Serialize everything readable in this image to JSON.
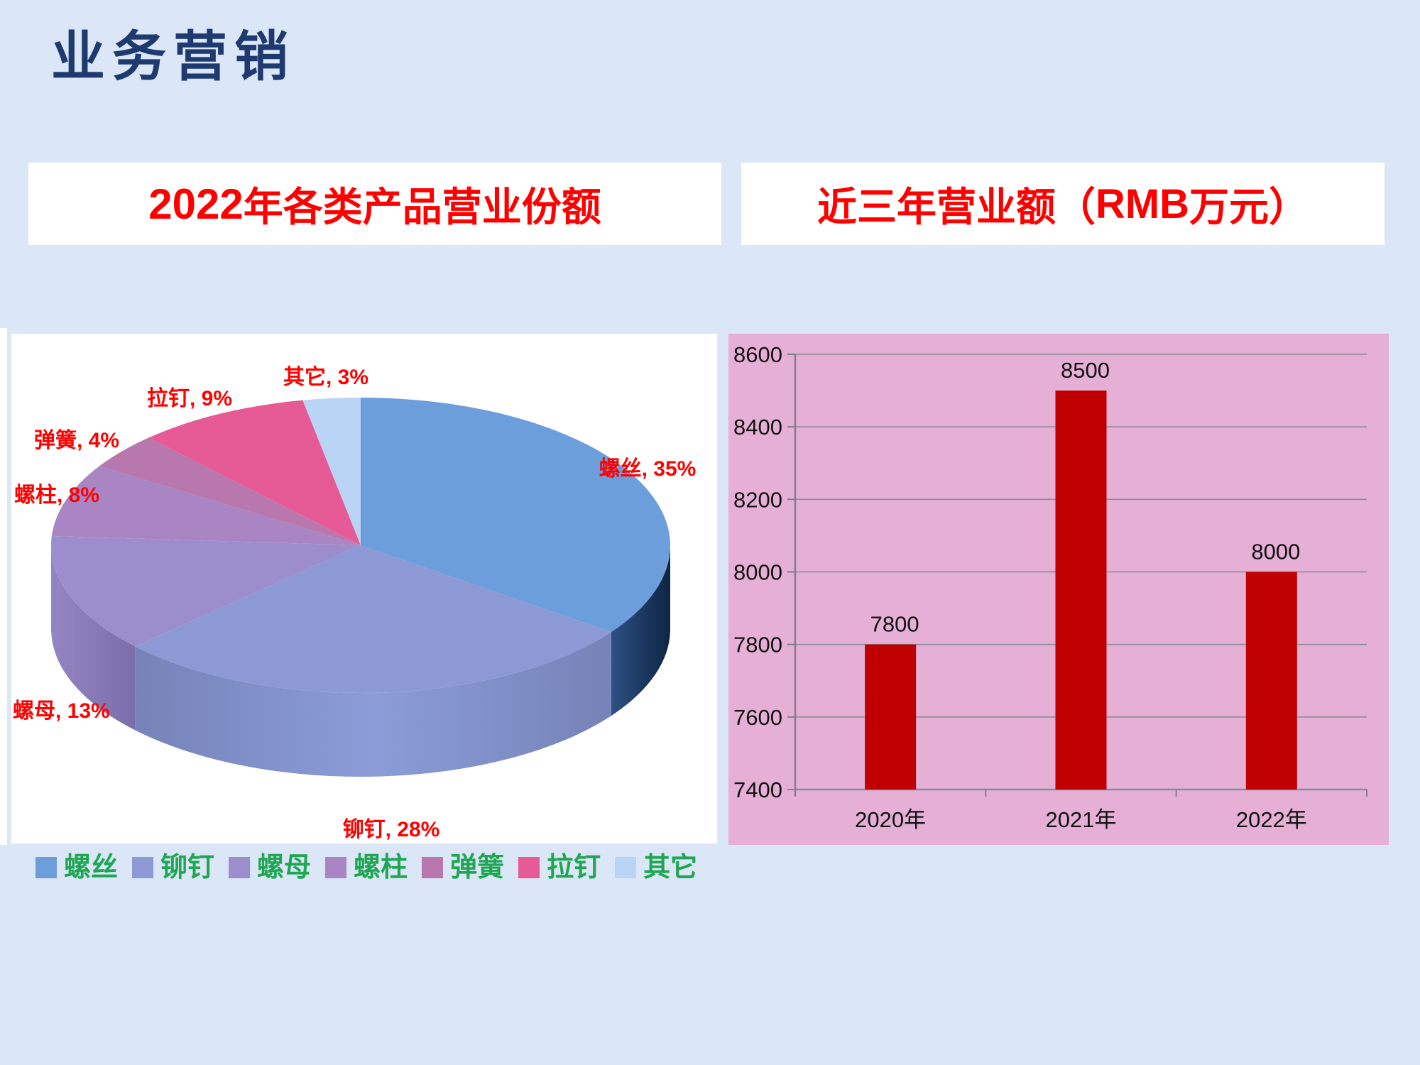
{
  "slide": {
    "title": "业务营销",
    "header_left": {
      "num": "2022",
      "rest": "年各类产品营业份额"
    },
    "header_right": {
      "parts": [
        "近三年营业额（",
        "RMB",
        " 万元）"
      ]
    }
  },
  "colors": {
    "slide_bg": "#dbe6f7",
    "title_text": "#1e3a6e",
    "header_text": "#ff0000",
    "panel_white": "#ffffff",
    "pie_label_text": "#ff0000",
    "legend_text": "#1fa653",
    "bar_panel_bg": "#e5afd6",
    "bar_fill": "#c00000",
    "gridline": "#8c8c96",
    "axis": "#7f7f88",
    "tick_text": "#111111"
  },
  "chart_data": [
    {
      "type": "pie",
      "title": "2022年各类产品营业份额",
      "categories": [
        "螺丝",
        "铆钉",
        "螺母",
        "螺柱",
        "弹簧",
        "拉钉",
        "其它"
      ],
      "values": [
        35,
        28,
        13,
        8,
        4,
        9,
        3
      ],
      "unit": "%",
      "label_format": "{name}, {value}%",
      "start_angle_deg": 0,
      "direction": "clockwise",
      "effect": "3d",
      "legend_position": "bottom",
      "colors": [
        "#6d9edc",
        "#8c99d4",
        "#9c8ecc",
        "#aa85c3",
        "#b878ad",
        "#e65b95",
        "#bad4f5"
      ],
      "side_gradients": [
        [
          "#2e5183",
          "#0e2544"
        ],
        [
          "#7583b8",
          "#8c9cd8",
          "#7583b8"
        ],
        [
          "#9486c2",
          "#7c6dab"
        ]
      ]
    },
    {
      "type": "bar",
      "title": "近三年营业额（RMB 万元）",
      "categories": [
        "2020年",
        "2021年",
        "2022年"
      ],
      "values": [
        7800,
        8500,
        8000
      ],
      "ylim": [
        7400,
        8600
      ],
      "ytick_step": 200,
      "grid": true,
      "data_labels": true,
      "bar_color": "#c00000"
    }
  ]
}
